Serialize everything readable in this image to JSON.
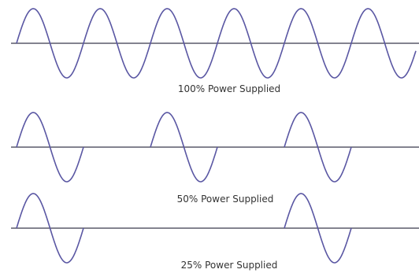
{
  "colors": {
    "wave": "#5a57a3",
    "axis": "#5a5a6a",
    "text": "#333333"
  },
  "panels": [
    {
      "caption": "100% Power Supplied",
      "power_fraction": 1.0,
      "active_cycles": [
        0,
        1,
        2,
        3,
        4,
        5
      ]
    },
    {
      "caption": "50% Power Supplied",
      "power_fraction": 0.5,
      "active_cycles": [
        0,
        2,
        4
      ]
    },
    {
      "caption": "25% Power Supplied",
      "power_fraction": 0.25,
      "active_cycles": [
        0,
        4
      ]
    }
  ]
}
